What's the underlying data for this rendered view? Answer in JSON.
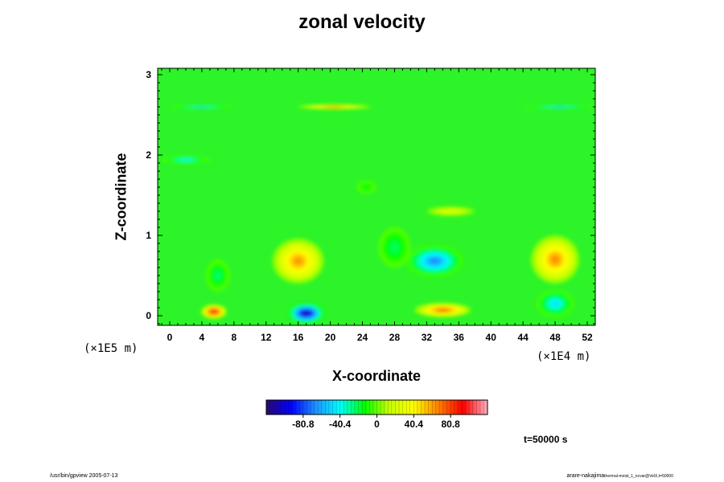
{
  "chart_data": {
    "type": "heatmap",
    "title": "zonal velocity",
    "xlabel": "X-coordinate",
    "ylabel": "Z-coordinate",
    "x_unit": "(×1E4 m)",
    "y_unit": "(×1E5 m)",
    "xlim": [
      -1.5,
      53
    ],
    "ylim": [
      -0.12,
      3.08
    ],
    "x_ticks": [
      0,
      4,
      8,
      12,
      16,
      20,
      24,
      28,
      32,
      36,
      40,
      44,
      48,
      52
    ],
    "x_tick_labels": [
      "0",
      "4",
      "8",
      "12",
      "16",
      "20",
      "24",
      "28",
      "32",
      "36",
      "40",
      "44",
      "48",
      "52"
    ],
    "y_ticks": [
      0,
      1,
      2,
      3
    ],
    "y_tick_labels": [
      "0",
      "1",
      "2",
      "3"
    ],
    "colorbar": {
      "ticks": [
        -80.8,
        -40.4,
        0,
        40.4,
        80.8
      ],
      "tick_labels": [
        "-80.8",
        "-40.4",
        "0",
        "40.4",
        "80.8"
      ],
      "range": [
        -121.2,
        121.2
      ],
      "colors": [
        "#2b0a6e",
        "#0000ff",
        "#1e90ff",
        "#00ffff",
        "#00ff00",
        "#c8ff00",
        "#ffff00",
        "#ff8000",
        "#ff0000",
        "#ffb0c0"
      ]
    },
    "features": [
      {
        "x": 16,
        "z": 0.68,
        "value": 72,
        "sx": 3.2,
        "sz": 0.28
      },
      {
        "x": 48,
        "z": 0.7,
        "value": 75,
        "sx": 3.0,
        "sz": 0.3
      },
      {
        "x": 33,
        "z": 0.68,
        "value": -78,
        "sx": 3.6,
        "sz": 0.2
      },
      {
        "x": 17,
        "z": 0.03,
        "value": -130,
        "sx": 2.3,
        "sz": 0.13
      },
      {
        "x": 5.5,
        "z": 0.05,
        "value": 115,
        "sx": 1.6,
        "sz": 0.09
      },
      {
        "x": 34,
        "z": 0.07,
        "value": 85,
        "sx": 3.5,
        "sz": 0.09
      },
      {
        "x": 48,
        "z": 0.15,
        "value": -55,
        "sx": 2.3,
        "sz": 0.17
      },
      {
        "x": 6,
        "z": 0.5,
        "value": -30,
        "sx": 1.5,
        "sz": 0.2
      },
      {
        "x": 28,
        "z": 0.85,
        "value": -28,
        "sx": 2.0,
        "sz": 0.25
      },
      {
        "x": 20.5,
        "z": 2.6,
        "value": 78,
        "sx": 4.5,
        "sz": 0.03
      },
      {
        "x": 4,
        "z": 2.6,
        "value": -60,
        "sx": 4.0,
        "sz": 0.02
      },
      {
        "x": 48.5,
        "z": 2.6,
        "value": -60,
        "sx": 4.5,
        "sz": 0.02
      },
      {
        "x": 2,
        "z": 1.94,
        "value": -50,
        "sx": 3.0,
        "sz": 0.05
      },
      {
        "x": 35,
        "z": 1.3,
        "value": 30,
        "sx": 3.0,
        "sz": 0.06
      },
      {
        "x": 24.5,
        "z": 1.6,
        "value": -20,
        "sx": 1.2,
        "sz": 0.08
      }
    ]
  },
  "labels": {
    "y_unit": "(×1E5 m)",
    "x_unit": "(×1E4 m)",
    "time": "t=50000 s",
    "footer_left": "/usr/bin/gpview 2005-07-13",
    "footer_right_main": "arare-nakajima",
    "footer_right_small": "thermal-moist_1_ncvar@VelX,t=50000"
  }
}
